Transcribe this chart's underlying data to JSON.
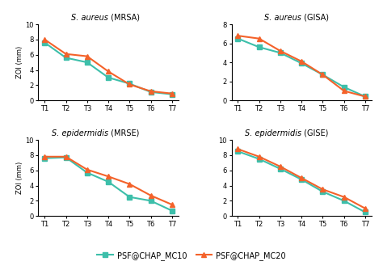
{
  "x_labels": [
    "T1",
    "T2",
    "T3",
    "T4",
    "T5",
    "T6",
    "T7"
  ],
  "subplots": [
    {
      "title_italic": "S. aureus",
      "title_normal": " (MRSA)",
      "mc10": [
        7.6,
        5.6,
        5.0,
        3.0,
        2.2,
        1.1,
        0.8
      ],
      "mc20": [
        8.0,
        6.1,
        5.8,
        3.8,
        2.1,
        1.2,
        0.9
      ],
      "ylim": [
        0,
        10
      ],
      "yticks": [
        0,
        2,
        4,
        6,
        8,
        10
      ]
    },
    {
      "title_italic": "S. aureus",
      "title_normal": " (GISA)",
      "mc10": [
        6.5,
        5.6,
        5.0,
        3.9,
        2.7,
        1.4,
        0.4
      ],
      "mc20": [
        6.8,
        6.5,
        5.2,
        4.1,
        2.7,
        1.0,
        0.4
      ],
      "ylim": [
        0,
        8
      ],
      "yticks": [
        0,
        2,
        4,
        6,
        8
      ]
    },
    {
      "title_italic": "S. epidermidis",
      "title_normal": " (MRSE)",
      "mc10": [
        7.6,
        7.7,
        5.7,
        4.5,
        2.5,
        2.0,
        0.7
      ],
      "mc20": [
        7.8,
        7.8,
        6.1,
        5.2,
        4.2,
        2.7,
        1.5
      ],
      "ylim": [
        0,
        10
      ],
      "yticks": [
        0,
        2,
        4,
        6,
        8,
        10
      ]
    },
    {
      "title_italic": "S. epidermidis",
      "title_normal": " (GISE)",
      "mc10": [
        8.5,
        7.5,
        6.2,
        4.8,
        3.2,
        2.0,
        0.5
      ],
      "mc20": [
        8.8,
        7.8,
        6.5,
        5.0,
        3.5,
        2.5,
        1.0
      ],
      "ylim": [
        0,
        10
      ],
      "yticks": [
        0,
        2,
        4,
        6,
        8,
        10
      ]
    }
  ],
  "color_mc10": "#3dbfaa",
  "color_mc20": "#f4622a",
  "marker_mc10": "s",
  "marker_mc20": "^",
  "legend_mc10": "PSF@CHAP_MC10",
  "legend_mc20": "PSF@CHAP_MC20",
  "ylabel": "ZOI (mm)",
  "background_color": "#ffffff",
  "linewidth": 1.5,
  "markersize": 4,
  "title_fontsize": 7,
  "tick_fontsize": 6,
  "ylabel_fontsize": 6,
  "legend_fontsize": 7
}
